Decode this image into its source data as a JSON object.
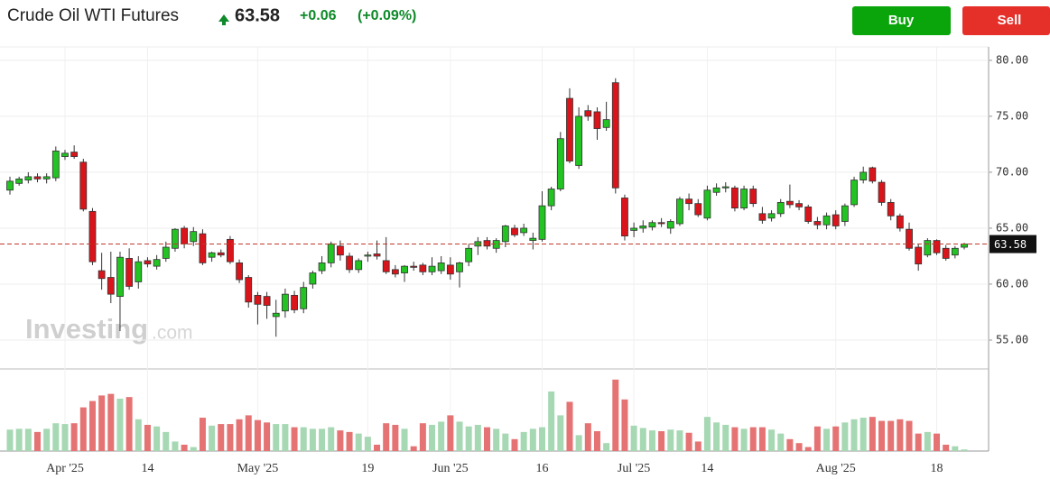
{
  "header": {
    "title": "Crude Oil WTI Futures",
    "price": 63.58,
    "change": "+0.06",
    "change_pct": "(+0.09%)"
  },
  "buttons": {
    "buy": "Buy",
    "sell": "Sell"
  },
  "watermark": {
    "brand": "Investing",
    "suffix": ".com"
  },
  "chart_data": {
    "type": "candlestick",
    "categories": [
      null,
      null,
      null,
      null,
      null,
      null,
      "Apr '25",
      null,
      null,
      null,
      null,
      null,
      null,
      null,
      null,
      "14",
      null,
      null,
      null,
      null,
      null,
      null,
      null,
      null,
      null,
      null,
      null,
      "May '25",
      null,
      null,
      null,
      null,
      null,
      null,
      null,
      null,
      null,
      null,
      null,
      "19",
      null,
      null,
      null,
      null,
      null,
      null,
      null,
      null,
      "Jun '25",
      null,
      null,
      null,
      null,
      null,
      null,
      null,
      null,
      null,
      "16",
      null,
      null,
      null,
      null,
      null,
      null,
      null,
      null,
      null,
      "Jul '25",
      null,
      null,
      null,
      null,
      null,
      null,
      null,
      "14",
      null,
      null,
      null,
      null,
      null,
      null,
      null,
      null,
      null,
      null,
      null,
      null,
      null,
      "Aug '25",
      null,
      null,
      null,
      null,
      null,
      null,
      null,
      null,
      null,
      null,
      "18",
      null,
      null,
      null
    ],
    "open": [
      68.4,
      69.0,
      69.3,
      69.6,
      69.4,
      69.5,
      71.4,
      71.8,
      70.9,
      66.5,
      61.2,
      60.6,
      58.9,
      62.3,
      60.2,
      62.1,
      61.6,
      62.3,
      63.2,
      65.0,
      63.8,
      64.5,
      62.4,
      62.8,
      64.0,
      61.9,
      60.6,
      59.0,
      58.9,
      57.1,
      57.6,
      59.0,
      57.8,
      60.0,
      61.2,
      61.9,
      63.4,
      62.5,
      61.3,
      62.5,
      62.7,
      62.1,
      61.3,
      61.0,
      61.6,
      61.7,
      61.1,
      61.2,
      61.7,
      61.1,
      62.0,
      63.4,
      63.9,
      63.2,
      63.8,
      65.0,
      64.6,
      63.9,
      64.0,
      67.0,
      68.5,
      76.6,
      70.6,
      75.5,
      75.4,
      74.0,
      78.0,
      67.7,
      64.8,
      65.0,
      65.1,
      65.5,
      65.0,
      65.4,
      67.6,
      67.2,
      65.9,
      68.2,
      68.6,
      68.6,
      66.8,
      68.5,
      66.3,
      65.9,
      66.3,
      67.4,
      67.2,
      66.9,
      65.6,
      65.3,
      66.2,
      65.6,
      67.1,
      69.3,
      70.4,
      69.1,
      67.3,
      66.1,
      64.9,
      63.3,
      62.6,
      63.9,
      63.2,
      62.6,
      63.3
    ],
    "high": [
      69.6,
      69.6,
      70.0,
      69.9,
      69.9,
      72.3,
      72.0,
      72.4,
      71.2,
      66.8,
      62.8,
      62.9,
      62.9,
      63.2,
      62.5,
      62.4,
      62.6,
      63.8,
      65.0,
      65.2,
      65.1,
      64.9,
      62.9,
      63.1,
      64.3,
      62.2,
      60.8,
      59.3,
      59.3,
      58.6,
      59.6,
      59.4,
      60.2,
      61.2,
      62.5,
      63.8,
      63.9,
      62.8,
      62.3,
      62.9,
      63.9,
      64.2,
      61.7,
      61.7,
      62.0,
      61.9,
      62.4,
      62.5,
      62.4,
      62.0,
      63.6,
      64.2,
      64.2,
      64.1,
      65.3,
      65.3,
      65.4,
      64.6,
      68.3,
      68.7,
      73.6,
      77.5,
      75.8,
      76.0,
      75.8,
      76.3,
      78.4,
      68.0,
      65.5,
      65.7,
      65.7,
      65.9,
      65.8,
      67.8,
      68.1,
      67.6,
      68.8,
      69.0,
      69.1,
      68.8,
      68.8,
      68.8,
      66.9,
      66.6,
      67.6,
      68.9,
      67.5,
      67.1,
      66.0,
      66.4,
      66.6,
      67.2,
      69.6,
      70.5,
      70.5,
      69.3,
      67.6,
      66.3,
      65.5,
      63.6,
      64.1,
      64.0,
      63.5,
      63.4,
      63.7
    ],
    "low": [
      68.0,
      68.8,
      69.0,
      69.1,
      69.0,
      69.2,
      71.1,
      71.2,
      66.5,
      61.7,
      59.5,
      58.3,
      55.8,
      59.5,
      59.6,
      61.5,
      61.3,
      62.0,
      62.9,
      63.2,
      63.4,
      61.7,
      62.0,
      62.4,
      61.8,
      60.1,
      57.9,
      56.4,
      56.9,
      55.3,
      57.0,
      57.4,
      57.4,
      59.6,
      60.9,
      61.5,
      62.1,
      61.0,
      61.0,
      62.0,
      62.2,
      60.9,
      60.6,
      60.2,
      61.2,
      60.8,
      60.8,
      60.9,
      60.4,
      59.7,
      61.6,
      62.6,
      63.1,
      62.8,
      63.3,
      64.2,
      64.3,
      63.1,
      63.8,
      66.6,
      68.3,
      70.8,
      70.3,
      74.6,
      72.9,
      73.7,
      68.1,
      63.9,
      64.2,
      64.6,
      64.8,
      65.1,
      64.5,
      65.2,
      66.6,
      66.0,
      65.7,
      67.9,
      68.2,
      66.5,
      66.6,
      66.9,
      65.4,
      65.6,
      66.0,
      66.8,
      66.6,
      65.4,
      64.9,
      64.9,
      64.9,
      65.2,
      66.9,
      69.0,
      69.0,
      67.0,
      65.7,
      64.7,
      63.0,
      61.2,
      62.4,
      62.6,
      62.1,
      62.3,
      63.1
    ],
    "close": [
      69.2,
      69.4,
      69.6,
      69.4,
      69.6,
      71.9,
      71.7,
      71.4,
      66.7,
      62.0,
      60.5,
      59.1,
      62.4,
      59.8,
      62.0,
      61.8,
      62.2,
      63.3,
      64.9,
      63.6,
      64.7,
      61.9,
      62.8,
      62.6,
      62.0,
      60.4,
      58.4,
      58.2,
      58.1,
      57.4,
      59.1,
      57.7,
      59.7,
      61.0,
      61.9,
      63.6,
      62.6,
      61.3,
      62.1,
      62.6,
      62.5,
      61.1,
      60.9,
      61.6,
      61.5,
      61.1,
      61.6,
      61.9,
      60.9,
      61.9,
      63.2,
      63.8,
      63.4,
      63.9,
      65.2,
      64.4,
      65.0,
      64.1,
      67.0,
      68.5,
      73.0,
      71.0,
      75.0,
      75.0,
      73.9,
      74.7,
      68.6,
      64.3,
      65.0,
      65.2,
      65.5,
      65.4,
      65.6,
      67.6,
      67.2,
      66.2,
      68.4,
      68.6,
      68.7,
      66.8,
      68.5,
      67.2,
      65.7,
      66.3,
      67.3,
      67.1,
      66.9,
      65.6,
      65.3,
      66.1,
      65.2,
      67.0,
      69.3,
      70.0,
      69.2,
      67.3,
      66.1,
      65.0,
      63.2,
      61.8,
      63.9,
      62.8,
      62.3,
      63.2,
      63.58
    ],
    "volume": [
      27,
      28,
      28,
      24,
      28,
      35,
      34,
      35,
      55,
      63,
      70,
      72,
      66,
      68,
      40,
      33,
      31,
      24,
      12,
      8,
      5,
      42,
      32,
      34,
      34,
      40,
      45,
      39,
      36,
      34,
      34,
      30,
      30,
      28,
      28,
      30,
      26,
      24,
      22,
      18,
      8,
      35,
      33,
      28,
      6,
      35,
      33,
      37,
      45,
      37,
      31,
      33,
      30,
      28,
      22,
      15,
      24,
      28,
      30,
      75,
      45,
      62,
      20,
      35,
      25,
      10,
      90,
      65,
      32,
      29,
      26,
      25,
      27,
      26,
      23,
      12,
      43,
      36,
      33,
      30,
      28,
      30,
      30,
      27,
      22,
      15,
      10,
      5,
      31,
      28,
      31,
      36,
      40,
      42,
      43,
      38,
      38,
      40,
      38,
      22,
      24,
      22,
      8,
      6,
      2
    ],
    "ylim": [
      52.5,
      81.2
    ],
    "yticks": [
      {
        "value": 55,
        "label": "55.00"
      },
      {
        "value": 60,
        "label": "60.00"
      },
      {
        "value": 65,
        "label": "65.00"
      },
      {
        "value": 70,
        "label": "70.00"
      },
      {
        "value": 75,
        "label": "75.00"
      },
      {
        "value": 80,
        "label": "80.00"
      }
    ],
    "volume_lim": [
      0,
      100
    ],
    "up_color": "#22c322",
    "down_color": "#d9151b",
    "volume_up_color": "#a6d8b3",
    "volume_down_color": "#e57373",
    "grid": true
  }
}
